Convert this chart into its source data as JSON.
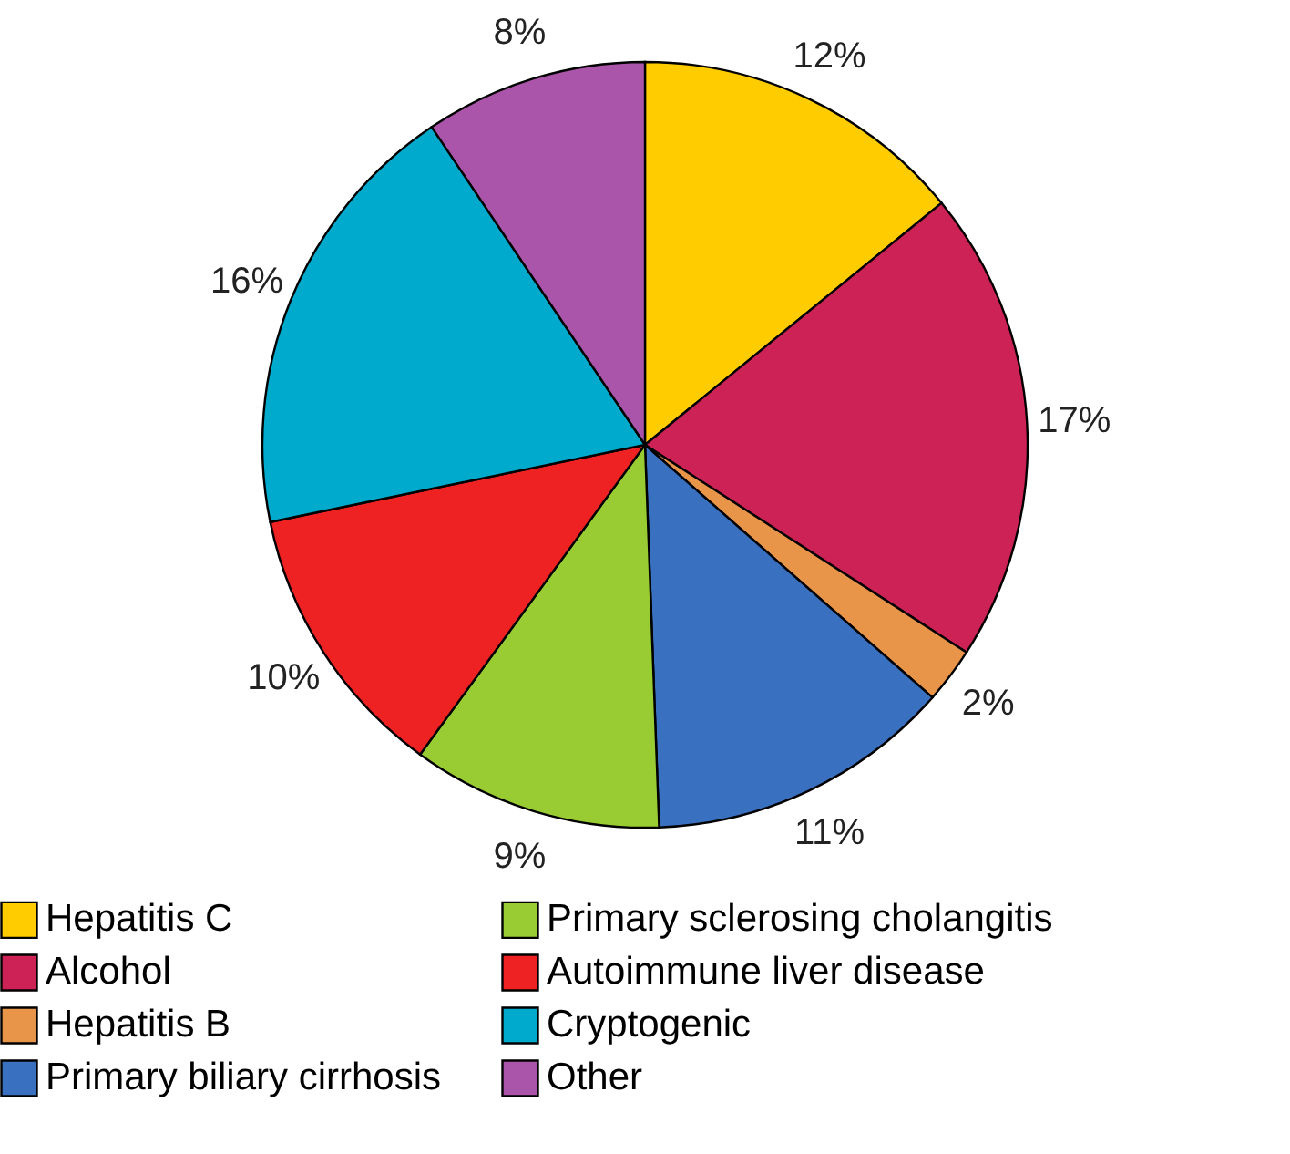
{
  "chart_data": {
    "type": "pie",
    "categories": [
      "Hepatitis C",
      "Alcohol",
      "Hepatitis B",
      "Primary biliary cirrhosis",
      "Primary sclerosing cholangitis",
      "Autoimmune liver disease",
      "Cryptogenic",
      "Other"
    ],
    "values": [
      12,
      17,
      2,
      11,
      9,
      10,
      16,
      8
    ],
    "value_labels": [
      "12%",
      "17%",
      "2%",
      "11%",
      "9%",
      "10%",
      "16%",
      "8%"
    ],
    "colors": [
      "#ffcc00",
      "#cc2255",
      "#e8954a",
      "#3a70c0",
      "#99cc33",
      "#ee2222",
      "#00aacc",
      "#aa55aa"
    ],
    "legend": "bottom"
  }
}
